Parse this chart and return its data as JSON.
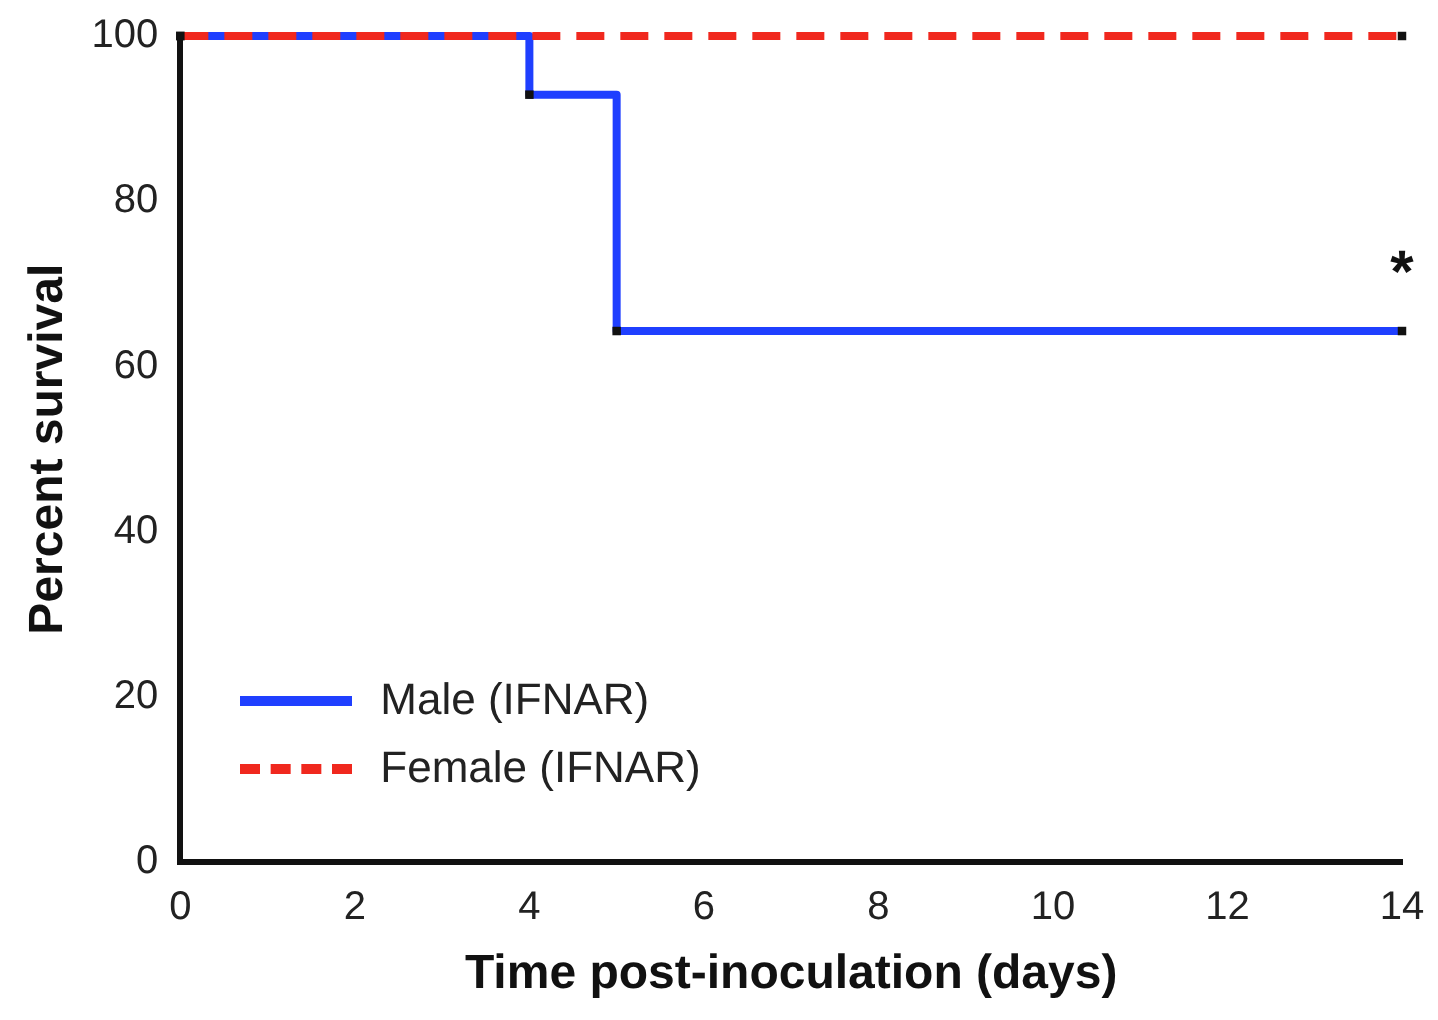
{
  "chart_data": {
    "type": "step",
    "xlabel": "Time post-inoculation (days)",
    "ylabel": "Percent survival",
    "xlim": [
      0,
      14
    ],
    "xticks": [
      0,
      2,
      4,
      6,
      8,
      10,
      12,
      14
    ],
    "ylim": [
      0,
      100
    ],
    "yticks": [
      0,
      20,
      40,
      60,
      80,
      100
    ],
    "grid": false,
    "legend": "bottom left",
    "marker": "square",
    "series": [
      {
        "name": "Male (IFNAR)",
        "color": "#1f3fff",
        "x": [
          0,
          4,
          5,
          14
        ],
        "values": [
          100,
          92.9,
          64.3,
          64.3
        ],
        "line_style": "solid"
      },
      {
        "name": "Female (IFNAR)",
        "color": "#f0281e",
        "x": [
          0,
          14
        ],
        "values": [
          100,
          100
        ],
        "line_style": "dashed"
      }
    ],
    "annotations": [
      {
        "text": "*",
        "x": 14,
        "y": 64.3
      }
    ]
  }
}
